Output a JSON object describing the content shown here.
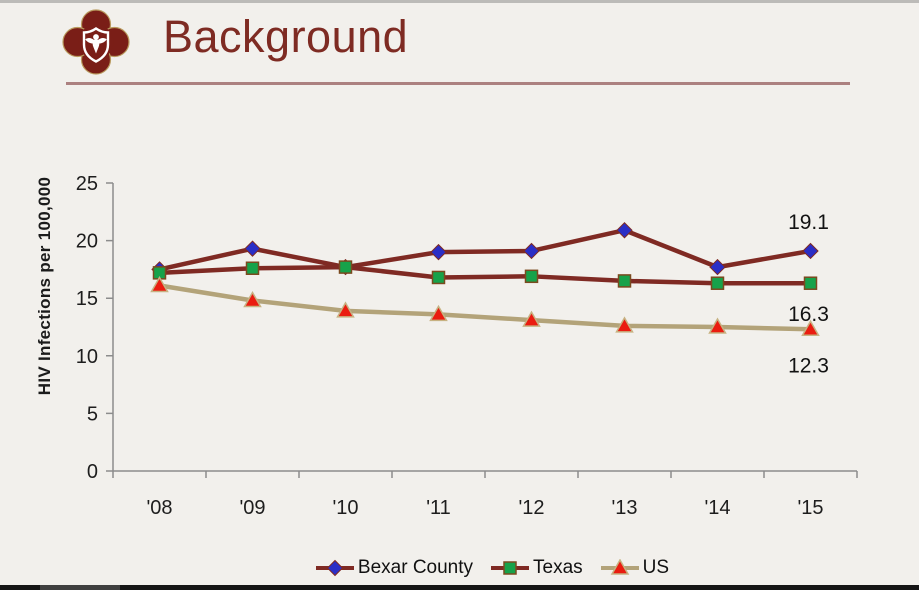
{
  "slide": {
    "title": "Background"
  },
  "colors": {
    "background": "#f2f0ec",
    "title": "#7e2b23",
    "title_rule": "#ac8180",
    "logo_maroon": "#7a1e17",
    "logo_gold": "#b99a5e",
    "axis": "#8c8c8c",
    "text_dark": "#1d1d1d",
    "bottom_bar": "#151515"
  },
  "chart_data": {
    "type": "line",
    "title": "",
    "ylabel": "HIV Infections per 100,000",
    "xlabel": "",
    "ylim": [
      0,
      25
    ],
    "yticks": [
      0,
      5,
      10,
      15,
      20,
      25
    ],
    "categories": [
      "'08",
      "'09",
      "'10",
      "'11",
      "'12",
      "'13",
      "'14",
      "'15"
    ],
    "series": [
      {
        "name": "Bexar County",
        "values": [
          17.5,
          19.3,
          17.7,
          19.0,
          19.1,
          20.9,
          17.7,
          19.1
        ],
        "line_color": "#7f2a23",
        "marker": "diamond",
        "marker_color": "#2a2ec6",
        "marker_edge": "#7f2a23"
      },
      {
        "name": "Texas",
        "values": [
          17.2,
          17.6,
          17.7,
          16.8,
          16.9,
          16.5,
          16.3,
          16.3
        ],
        "line_color": "#7f2a23",
        "marker": "square",
        "marker_color": "#17a24a",
        "marker_edge": "#7a4a1f"
      },
      {
        "name": "US",
        "values": [
          16.1,
          14.8,
          13.9,
          13.6,
          13.1,
          12.6,
          12.5,
          12.3
        ],
        "line_color": "#b3a379",
        "marker": "triangle",
        "marker_color": "#ea1c10",
        "marker_edge": "#c7b282"
      }
    ],
    "end_labels": [
      "19.1",
      "16.3",
      "12.3"
    ],
    "grid": false,
    "legend_position": "bottom"
  }
}
